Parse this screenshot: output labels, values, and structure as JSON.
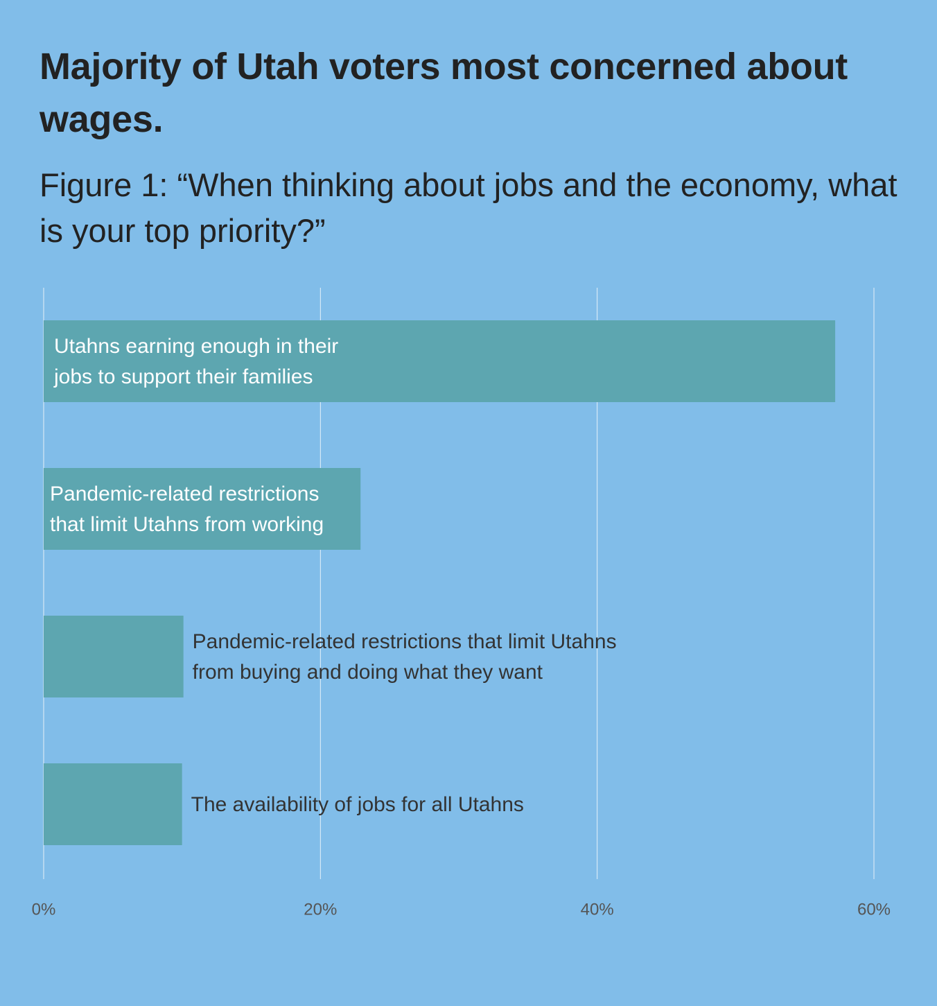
{
  "title": "Majority of Utah voters most concerned about wages.",
  "subtitle": "Figure 1: “When thinking about jobs and the economy, what is your top priority?”",
  "colors": {
    "background": "#81bde9",
    "bar": "#5da6b0",
    "gridline": "#e6f0f8",
    "label_inside": "#ffffff",
    "label_outside": "#333333",
    "tick_label": "#555555"
  },
  "chart_data": {
    "type": "bar",
    "orientation": "horizontal",
    "categories": [
      "Utahns earning enough in their jobs to support their families",
      "Pandemic-related restrictions that limit Utahns from working",
      "Pandemic-related restrictions that limit Utahns from buying and doing what they want",
      "The availability of jobs for all Utahns"
    ],
    "label_lines": [
      [
        "Utahns earning enough in their",
        "jobs to support their families"
      ],
      [
        "Pandemic-related restrictions",
        "that limit Utahns from working"
      ],
      [
        "Pandemic-related restrictions that limit Utahns",
        "from buying and doing what they want"
      ],
      [
        "The availability of jobs for all Utahns"
      ]
    ],
    "values": [
      57.2,
      22.9,
      10.1,
      10.0
    ],
    "label_position": [
      "inside",
      "inside",
      "outside",
      "outside"
    ],
    "xlim": [
      0,
      60
    ],
    "x_ticks": [
      0,
      20,
      40,
      60
    ],
    "x_tick_labels": [
      "0%",
      "20%",
      "40%",
      "60%"
    ],
    "grid": true,
    "legend": "none"
  }
}
